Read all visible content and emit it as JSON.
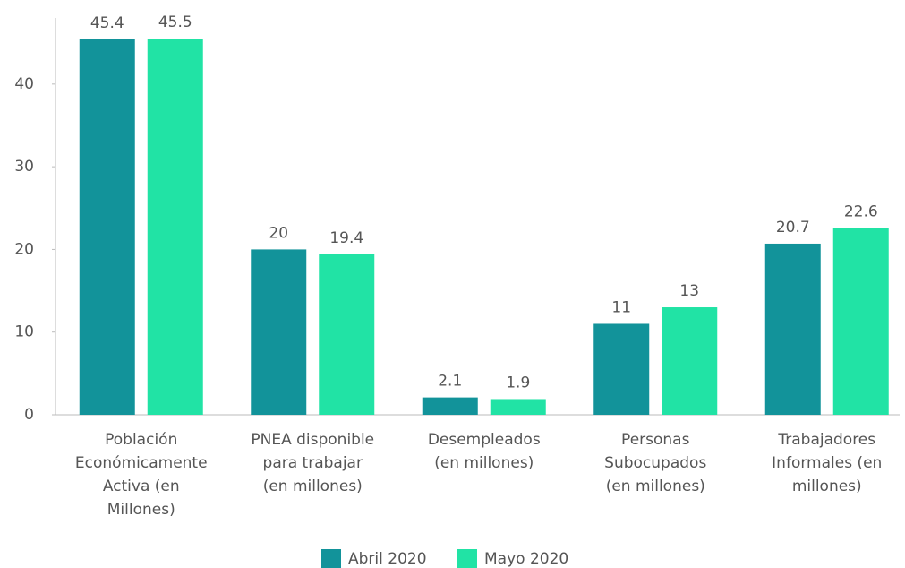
{
  "chart_data": {
    "type": "bar",
    "categories": [
      "Población\nEconómicamente\nActiva (en\nMillones)",
      "PNEA disponible\npara trabajar\n(en millones)",
      "Desempleados\n(en millones)",
      "Personas\nSubocupados\n(en millones)",
      "Trabajadores\nInformales (en\nmillones)"
    ],
    "series": [
      {
        "name": "Abril 2020",
        "color": "#12939a",
        "values": [
          45.4,
          20,
          2.1,
          11,
          20.7
        ]
      },
      {
        "name": "Mayo 2020",
        "color": "#21e3a5",
        "values": [
          45.5,
          19.4,
          1.9,
          13,
          22.6
        ]
      }
    ],
    "ylim": [
      0,
      48
    ],
    "yticks": [
      0,
      10,
      20,
      30,
      40
    ],
    "grid": false,
    "legend": "bottom"
  }
}
